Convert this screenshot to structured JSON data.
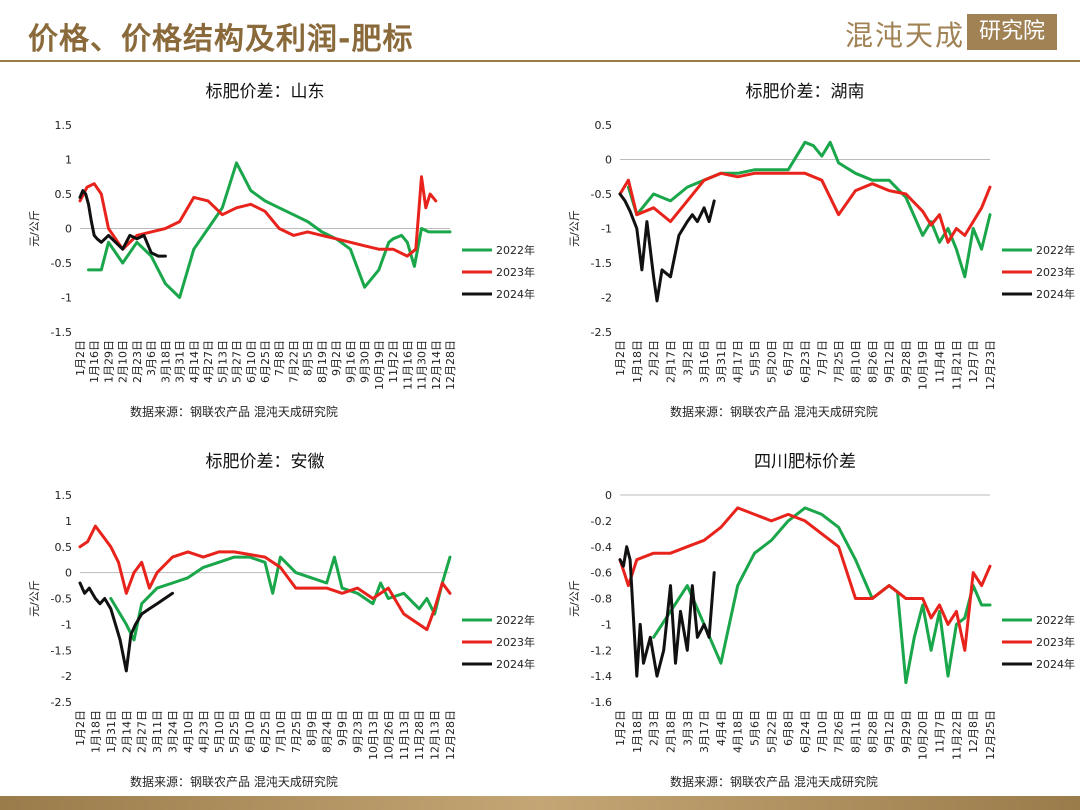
{
  "header": {
    "title": "价格、价格结构及利润-肥标",
    "brand": "混沌天成",
    "brand_seal": "研究院"
  },
  "colors": {
    "y2022": "#1aa64a",
    "y2023": "#e8231c",
    "y2024": "#111111",
    "accent": "#9a7b4a"
  },
  "chart_data": [
    {
      "type": "line",
      "title": "标肥价差：山东",
      "ylabel": "元/公斤",
      "ylim": [
        -1.5,
        1.5
      ],
      "yticks": [
        "1.5",
        "1",
        "0.5",
        "0",
        "-0.5",
        "-1",
        "-1.5"
      ],
      "xticks": [
        "1月2日",
        "1月16日",
        "1月29日",
        "2月10日",
        "2月23日",
        "3月6日",
        "3月18日",
        "3月31日",
        "4月14日",
        "4月27日",
        "5月13日",
        "5月27日",
        "6月10日",
        "6月25日",
        "7月8日",
        "7月22日",
        "8月5日",
        "8月19日",
        "9月2日",
        "9月16日",
        "9月30日",
        "10月19日",
        "11月2日",
        "11月16日",
        "11月30日",
        "12月14日",
        "12月28日"
      ],
      "legend": [
        "2022年",
        "2023年",
        "2024年"
      ],
      "source": "数据来源：钢联农产品  混沌天成研究院",
      "series": [
        {
          "name": "2022年",
          "x": [
            0.6,
            1.5,
            2,
            3,
            4,
            5,
            6,
            7,
            8,
            9,
            10,
            11,
            12,
            13,
            14,
            15,
            16,
            17,
            18,
            19,
            20,
            21,
            21.7,
            22,
            22.6,
            23,
            23.5,
            24,
            24.5,
            25,
            25.5,
            26
          ],
          "y": [
            -0.6,
            -0.6,
            -0.2,
            -0.5,
            -0.2,
            -0.4,
            -0.8,
            -1.0,
            -0.3,
            0.0,
            0.3,
            0.95,
            0.55,
            0.4,
            0.3,
            0.2,
            0.1,
            -0.05,
            -0.15,
            -0.3,
            -0.85,
            -0.6,
            -0.2,
            -0.15,
            -0.1,
            -0.2,
            -0.55,
            0.0,
            -0.05,
            -0.05,
            -0.05,
            -0.05
          ]
        },
        {
          "name": "2023年",
          "x": [
            0,
            0.5,
            1,
            1.5,
            2,
            3,
            4,
            5,
            6,
            7,
            8,
            9,
            10,
            11,
            12,
            13,
            14,
            15,
            16,
            17,
            18,
            19,
            20,
            21,
            22,
            23,
            23.6,
            24,
            24.3,
            24.6,
            25
          ],
          "y": [
            0.4,
            0.6,
            0.65,
            0.5,
            0.0,
            -0.3,
            -0.1,
            -0.05,
            0.0,
            0.1,
            0.45,
            0.4,
            0.2,
            0.3,
            0.35,
            0.25,
            0.0,
            -0.1,
            -0.05,
            -0.1,
            -0.15,
            -0.2,
            -0.25,
            -0.3,
            -0.3,
            -0.4,
            -0.3,
            0.75,
            0.3,
            0.5,
            0.4
          ]
        },
        {
          "name": "2024年",
          "x": [
            0,
            0.2,
            0.4,
            0.6,
            0.8,
            1,
            1.2,
            1.5,
            2,
            2.5,
            3,
            3.5,
            4,
            4.5,
            5,
            5.5,
            6
          ],
          "y": [
            0.45,
            0.55,
            0.5,
            0.35,
            0.1,
            -0.1,
            -0.15,
            -0.2,
            -0.1,
            -0.2,
            -0.3,
            -0.1,
            -0.15,
            -0.1,
            -0.35,
            -0.4,
            -0.4
          ]
        }
      ]
    },
    {
      "type": "line",
      "title": "标肥价差：湖南",
      "ylabel": "元/公斤",
      "ylim": [
        -2.5,
        0.5
      ],
      "yticks": [
        "0.5",
        "0",
        "-0.5",
        "-1",
        "-1.5",
        "-2",
        "-2.5"
      ],
      "xticks": [
        "1月2日",
        "1月18日",
        "2月2日",
        "2月17日",
        "3月2日",
        "3月16日",
        "3月31日",
        "4月17日",
        "5月5日",
        "5月20日",
        "6月7日",
        "6月23日",
        "7月7日",
        "7月25日",
        "8月10日",
        "8月26日",
        "9月12日",
        "9月28日",
        "10月19日",
        "11月4日",
        "11月21日",
        "12月7日",
        "12月23日"
      ],
      "legend": [
        "2022年",
        "2023年",
        "2024年"
      ],
      "source": "数据来源：钢联农产品  混沌天成研究院",
      "series": [
        {
          "name": "2022年",
          "x": [
            0.5,
            1,
            2,
            3,
            4,
            5,
            6,
            7,
            8,
            9,
            10,
            11,
            11.5,
            12,
            12.5,
            13,
            14,
            15,
            16,
            17,
            18,
            18.5,
            19,
            19.5,
            20,
            20.5,
            21,
            21.5,
            22
          ],
          "y": [
            -0.4,
            -0.8,
            -0.5,
            -0.6,
            -0.4,
            -0.3,
            -0.2,
            -0.2,
            -0.15,
            -0.15,
            -0.15,
            0.25,
            0.2,
            0.05,
            0.25,
            -0.05,
            -0.2,
            -0.3,
            -0.3,
            -0.55,
            -1.1,
            -0.9,
            -1.2,
            -1.0,
            -1.3,
            -1.7,
            -1.0,
            -1.3,
            -0.8
          ]
        },
        {
          "name": "2023年",
          "x": [
            0,
            0.5,
            1,
            2,
            3,
            4,
            5,
            6,
            7,
            8,
            9,
            10,
            11,
            12,
            13,
            14,
            15,
            16,
            17,
            18,
            18.5,
            19,
            19.5,
            20,
            20.5,
            21,
            21.5,
            22
          ],
          "y": [
            -0.5,
            -0.3,
            -0.8,
            -0.7,
            -0.9,
            -0.6,
            -0.3,
            -0.2,
            -0.25,
            -0.2,
            -0.2,
            -0.2,
            -0.2,
            -0.3,
            -0.8,
            -0.45,
            -0.35,
            -0.45,
            -0.5,
            -0.75,
            -0.95,
            -0.8,
            -1.2,
            -1.0,
            -1.1,
            -0.9,
            -0.7,
            -0.4
          ]
        },
        {
          "name": "2024年",
          "x": [
            0,
            0.3,
            0.6,
            1,
            1.3,
            1.6,
            2,
            2.2,
            2.5,
            3,
            3.5,
            4,
            4.3,
            4.6,
            5,
            5.3,
            5.6
          ],
          "y": [
            -0.5,
            -0.6,
            -0.75,
            -1.0,
            -1.6,
            -0.9,
            -1.7,
            -2.05,
            -1.6,
            -1.7,
            -1.1,
            -0.9,
            -0.8,
            -0.9,
            -0.7,
            -0.9,
            -0.6
          ]
        }
      ]
    },
    {
      "type": "line",
      "title": "标肥价差：安徽",
      "ylabel": "元/公斤",
      "ylim": [
        -2.5,
        1.5
      ],
      "yticks": [
        "1.5",
        "1",
        "0.5",
        "0",
        "-0.5",
        "-1",
        "-1.5",
        "-2",
        "-2.5"
      ],
      "xticks": [
        "1月2日",
        "1月18日",
        "1月31日",
        "2月14日",
        "2月27日",
        "3月11日",
        "3月24日",
        "4月10日",
        "4月23日",
        "5月10日",
        "5月25日",
        "6月10日",
        "6月25日",
        "7月10日",
        "7月25日",
        "8月9日",
        "8月24日",
        "9月9日",
        "9月23日",
        "10月13日",
        "10月26日",
        "11月13日",
        "11月28日",
        "12月13日",
        "12月28日"
      ],
      "legend": [
        "2022年",
        "2023年",
        "2024年"
      ],
      "source": "数据来源：钢联农产品  混沌天成研究院",
      "series": [
        {
          "name": "2022年",
          "x": [
            2,
            3,
            3.5,
            4,
            5,
            6,
            7,
            8,
            9,
            10,
            11,
            12,
            12.5,
            13,
            14,
            15,
            16,
            16.5,
            17,
            18,
            19,
            19.5,
            20,
            21,
            22,
            22.5,
            23,
            23.5,
            24
          ],
          "y": [
            -0.5,
            -1.0,
            -1.3,
            -0.6,
            -0.3,
            -0.2,
            -0.1,
            0.1,
            0.2,
            0.3,
            0.3,
            0.2,
            -0.4,
            0.3,
            0.0,
            -0.1,
            -0.2,
            0.3,
            -0.3,
            -0.4,
            -0.6,
            -0.2,
            -0.5,
            -0.4,
            -0.7,
            -0.5,
            -0.8,
            -0.2,
            0.3
          ]
        },
        {
          "name": "2023年",
          "x": [
            0,
            0.5,
            1,
            1.5,
            2,
            2.5,
            3,
            3.5,
            4,
            4.5,
            5,
            6,
            7,
            8,
            9,
            10,
            11,
            12,
            13,
            14,
            15,
            16,
            17,
            18,
            19,
            20,
            21,
            22,
            22.5,
            23,
            23.5,
            24
          ],
          "y": [
            0.5,
            0.6,
            0.9,
            0.7,
            0.5,
            0.2,
            -0.4,
            0.0,
            0.2,
            -0.3,
            0.0,
            0.3,
            0.4,
            0.3,
            0.4,
            0.4,
            0.35,
            0.3,
            0.1,
            -0.3,
            -0.3,
            -0.3,
            -0.4,
            -0.3,
            -0.5,
            -0.3,
            -0.8,
            -1.0,
            -1.1,
            -0.7,
            -0.2,
            -0.4
          ]
        },
        {
          "name": "2024年",
          "x": [
            0,
            0.3,
            0.6,
            1,
            1.3,
            1.6,
            2,
            2.3,
            2.6,
            3,
            3.3,
            3.6,
            4,
            4.5,
            5,
            5.5,
            6
          ],
          "y": [
            -0.2,
            -0.4,
            -0.3,
            -0.5,
            -0.6,
            -0.5,
            -0.7,
            -1.0,
            -1.3,
            -1.9,
            -1.2,
            -1.0,
            -0.8,
            -0.7,
            -0.6,
            -0.5,
            -0.4
          ]
        }
      ]
    },
    {
      "type": "line",
      "title": "四川肥标价差",
      "ylabel": "元/公斤",
      "ylim": [
        -1.6,
        0
      ],
      "yticks": [
        "0",
        "-0.2",
        "-0.4",
        "-0.6",
        "-0.8",
        "-1",
        "-1.2",
        "-1.4",
        "-1.6"
      ],
      "xticks": [
        "1月2日",
        "1月18日",
        "2月3日",
        "2月18日",
        "3月3日",
        "3月17日",
        "4月4日",
        "4月18日",
        "5月6日",
        "5月22日",
        "6月8日",
        "6月24日",
        "7月10日",
        "7月26日",
        "8月11日",
        "8月28日",
        "9月12日",
        "9月29日",
        "10月20日",
        "11月7日",
        "11月22日",
        "12月8日",
        "12月25日"
      ],
      "legend": [
        "2022年",
        "2023年",
        "2024年"
      ],
      "source": "数据来源：钢联农产品  混沌天成研究院",
      "series": [
        {
          "name": "2022年",
          "x": [
            2,
            3,
            4,
            5,
            6,
            7,
            8,
            9,
            10,
            11,
            12,
            13,
            14,
            15,
            16,
            16.5,
            17,
            17.5,
            18,
            18.5,
            19,
            19.5,
            20,
            20.5,
            21,
            21.5,
            22
          ],
          "y": [
            -1.1,
            -0.9,
            -0.7,
            -1.0,
            -1.3,
            -0.7,
            -0.45,
            -0.35,
            -0.2,
            -0.1,
            -0.15,
            -0.25,
            -0.5,
            -0.8,
            -0.7,
            -0.75,
            -1.45,
            -1.1,
            -0.85,
            -1.2,
            -0.9,
            -1.4,
            -1.0,
            -0.95,
            -0.7,
            -0.85,
            -0.85
          ]
        },
        {
          "name": "2023年",
          "x": [
            0,
            0.5,
            1,
            2,
            3,
            4,
            5,
            6,
            7,
            8,
            9,
            10,
            11,
            12,
            13,
            14,
            15,
            16,
            17,
            18,
            18.5,
            19,
            19.5,
            20,
            20.5,
            21,
            21.5,
            22
          ],
          "y": [
            -0.5,
            -0.7,
            -0.5,
            -0.45,
            -0.45,
            -0.4,
            -0.35,
            -0.25,
            -0.1,
            -0.15,
            -0.2,
            -0.15,
            -0.2,
            -0.3,
            -0.4,
            -0.8,
            -0.8,
            -0.7,
            -0.8,
            -0.8,
            -0.95,
            -0.85,
            -1.0,
            -0.9,
            -1.2,
            -0.6,
            -0.7,
            -0.55
          ]
        },
        {
          "name": "2024年",
          "x": [
            0,
            0.2,
            0.4,
            0.6,
            1,
            1.2,
            1.4,
            1.8,
            2.2,
            2.6,
            3,
            3.3,
            3.6,
            4,
            4.3,
            4.6,
            5,
            5.3,
            5.6
          ],
          "y": [
            -0.5,
            -0.55,
            -0.4,
            -0.5,
            -1.4,
            -1.0,
            -1.3,
            -1.1,
            -1.4,
            -1.2,
            -0.7,
            -1.3,
            -0.9,
            -1.2,
            -0.7,
            -1.1,
            -1.0,
            -1.1,
            -0.6
          ]
        }
      ]
    }
  ]
}
